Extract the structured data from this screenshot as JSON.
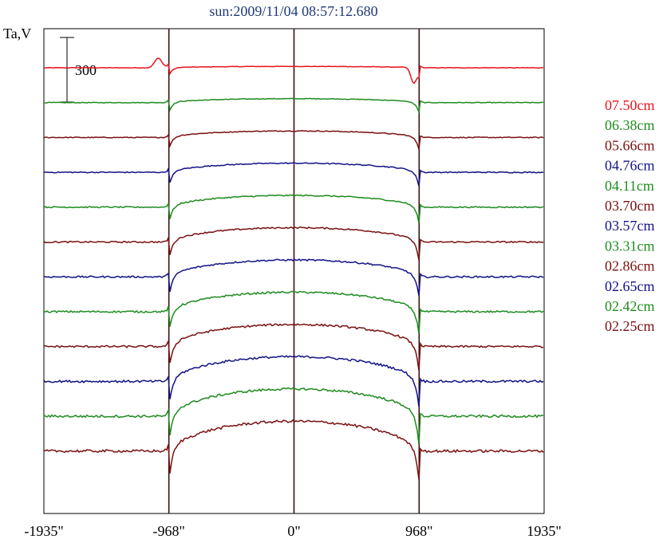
{
  "chart_data": {
    "type": "line",
    "title": "sun:2009/11/04 08:57:12.680",
    "ylabel": "Ta,V",
    "xlabel": "",
    "scale_bar": {
      "label": "300",
      "value": 300
    },
    "x_ticks": [
      {
        "value": -1935,
        "label": "-1935\""
      },
      {
        "value": -968,
        "label": "-968\""
      },
      {
        "value": 0,
        "label": "0\""
      },
      {
        "value": 968,
        "label": "968\""
      },
      {
        "value": 1935,
        "label": "1935\""
      }
    ],
    "xlim": [
      -1935,
      1935
    ],
    "vertical_lines": [
      -968,
      0,
      968
    ],
    "legend_position": "right",
    "series": [
      {
        "name": "07.50cm",
        "color": "#e8141c"
      },
      {
        "name": "06.38cm",
        "color": "#1e8c1e"
      },
      {
        "name": "05.66cm",
        "color": "#7a1010"
      },
      {
        "name": "04.76cm",
        "color": "#121286"
      },
      {
        "name": "04.11cm",
        "color": "#1e8c1e"
      },
      {
        "name": "03.70cm",
        "color": "#7a1010"
      },
      {
        "name": "03.57cm",
        "color": "#121286"
      },
      {
        "name": "03.31cm",
        "color": "#1e8c1e"
      },
      {
        "name": "02.86cm",
        "color": "#7a1010"
      },
      {
        "name": "02.65cm",
        "color": "#121286"
      },
      {
        "name": "02.42cm",
        "color": "#1e8c1e"
      },
      {
        "name": "02.25cm",
        "color": "#7a1010"
      }
    ]
  }
}
